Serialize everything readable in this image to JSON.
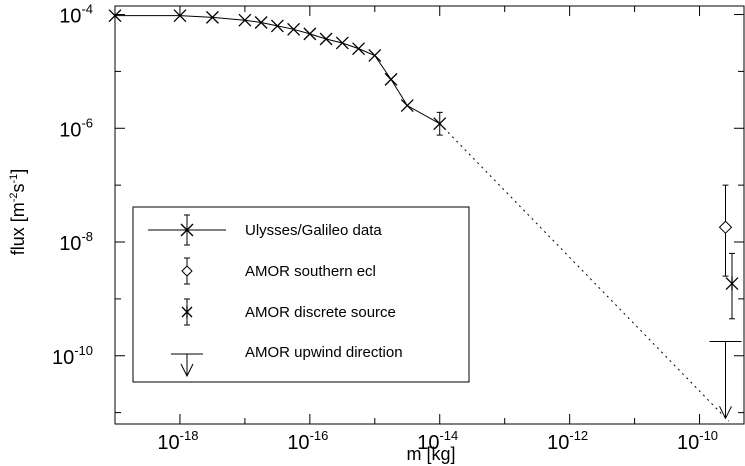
{
  "chart_data": {
    "type": "scatter",
    "xlabel": {
      "base": "m [kg]"
    },
    "ylabel": {
      "pre": "flux [m",
      "sup1": "-2",
      "mid": "s",
      "sup2": "-1",
      "post": "]"
    },
    "x_log_range": [
      -19,
      -9.3
    ],
    "y_log_range": [
      -11.2,
      -3.85
    ],
    "grid": false,
    "legend_position": "lower-left",
    "x_ticks": [
      {
        "base": "10",
        "exp": "-18",
        "logv": -18
      },
      {
        "base": "10",
        "exp": "-16",
        "logv": -16
      },
      {
        "base": "10",
        "exp": "-14",
        "logv": -14
      },
      {
        "base": "10",
        "exp": "-12",
        "logv": -12
      },
      {
        "base": "10",
        "exp": "-10",
        "logv": -10
      }
    ],
    "y_ticks": [
      {
        "base": "10",
        "exp": "-4",
        "logv": -4
      },
      {
        "base": "10",
        "exp": "-6",
        "logv": -6
      },
      {
        "base": "10",
        "exp": "-8",
        "logv": -8
      },
      {
        "base": "10",
        "exp": "-10",
        "logv": -10
      }
    ],
    "series": [
      {
        "name": "Ulysses/Galileo data",
        "marker": "x",
        "line": "solid",
        "points": [
          {
            "logm": -19.0,
            "logf": -4.02
          },
          {
            "logm": -18.0,
            "logf": -4.02
          },
          {
            "logm": -17.5,
            "logf": -4.05
          },
          {
            "logm": -17.0,
            "logf": -4.1
          },
          {
            "logm": -16.75,
            "logf": -4.14
          },
          {
            "logm": -16.5,
            "logf": -4.2
          },
          {
            "logm": -16.25,
            "logf": -4.26
          },
          {
            "logm": -16.0,
            "logf": -4.34
          },
          {
            "logm": -15.75,
            "logf": -4.43
          },
          {
            "logm": -15.5,
            "logf": -4.5
          },
          {
            "logm": -15.25,
            "logf": -4.6
          },
          {
            "logm": -15.0,
            "logf": -4.72
          },
          {
            "logm": -14.75,
            "logf": -5.14
          },
          {
            "logm": -14.5,
            "logf": -5.6
          },
          {
            "logm": -14.0,
            "logf": -5.92
          }
        ]
      },
      {
        "name": "AMOR southern ecl",
        "marker": "diamond",
        "points": [
          {
            "logm": -9.6,
            "logf": -7.74,
            "err_low": -8.6,
            "err_high": -7.0
          }
        ]
      },
      {
        "name": "AMOR discrete source",
        "marker": "asterisk",
        "points": [
          {
            "logm": -9.5,
            "logf": -8.73,
            "err_low": -9.35,
            "err_high": -8.2
          }
        ]
      },
      {
        "name": "AMOR upwind direction",
        "marker": "upper-limit",
        "points": [
          {
            "logm": -9.6,
            "logf": -9.75,
            "limit_to": -11.1
          }
        ]
      }
    ],
    "model_line": {
      "style": "dotted",
      "points": [
        {
          "logm": -14.0,
          "logf": -5.92
        },
        {
          "logm": -9.55,
          "logf": -11.15
        }
      ]
    }
  }
}
